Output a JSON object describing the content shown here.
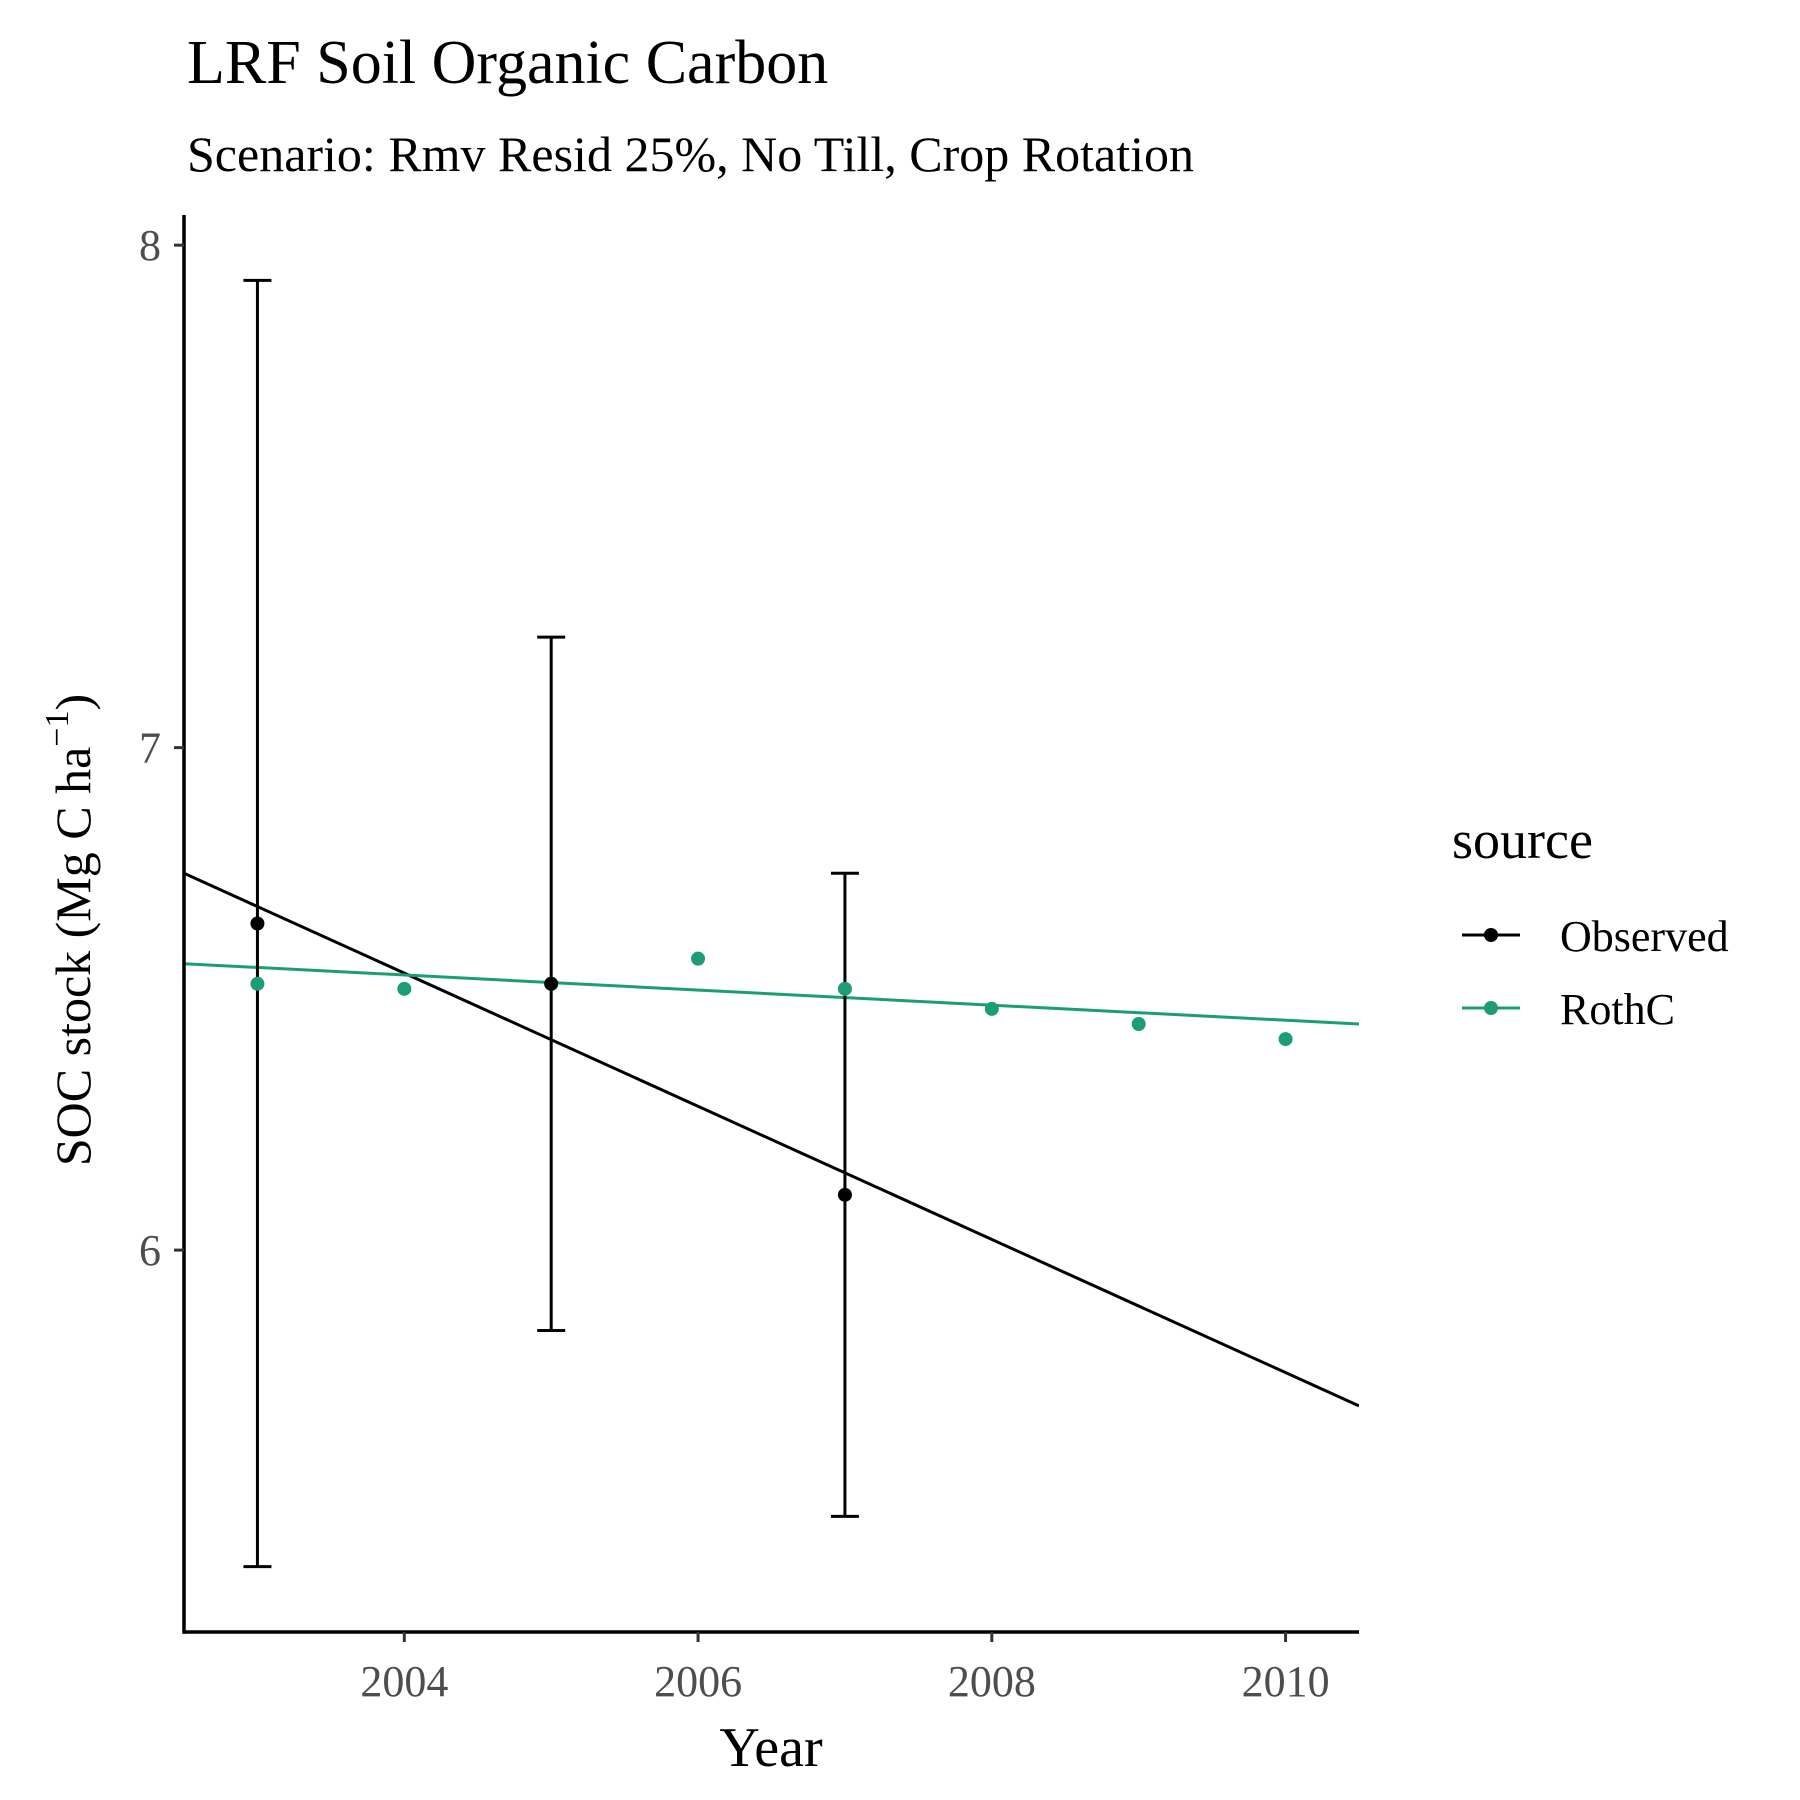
{
  "chart_data": {
    "type": "scatter",
    "title": "LRF Soil Organic Carbon",
    "subtitle": "Scenario: Rmv Resid 25%, No Till, Crop Rotation",
    "xlabel": "Year",
    "ylabel_main": "SOC stock (Mg C ha",
    "ylabel_sup": "−1",
    "ylabel_close": ")",
    "xlim": [
      2002.5,
      2010.5
    ],
    "ylim": [
      5.24,
      8.06
    ],
    "x_ticks": [
      2004,
      2006,
      2008,
      2010
    ],
    "y_ticks": [
      6,
      7,
      8
    ],
    "grid": false,
    "legend": {
      "title": "source",
      "position": "right",
      "entries": [
        "Observed",
        "RothC"
      ]
    },
    "series": [
      {
        "name": "Observed",
        "color": "#000000",
        "x": [
          2003,
          2005,
          2007
        ],
        "y": [
          6.65,
          6.53,
          6.11
        ],
        "error_low": [
          5.37,
          5.84,
          5.47
        ],
        "error_high": [
          7.93,
          7.22,
          6.75
        ],
        "trend": [
          [
            2002.5,
            6.75
          ],
          [
            2010.5,
            5.69
          ]
        ]
      },
      {
        "name": "RothC",
        "color": "#1B9E77",
        "x": [
          2003,
          2004,
          2005,
          2006,
          2007,
          2008,
          2009,
          2010
        ],
        "y": [
          6.53,
          6.52,
          6.53,
          6.58,
          6.52,
          6.48,
          6.45,
          6.42
        ],
        "trend": [
          [
            2002.5,
            6.57
          ],
          [
            2010.5,
            6.45
          ]
        ]
      }
    ]
  }
}
